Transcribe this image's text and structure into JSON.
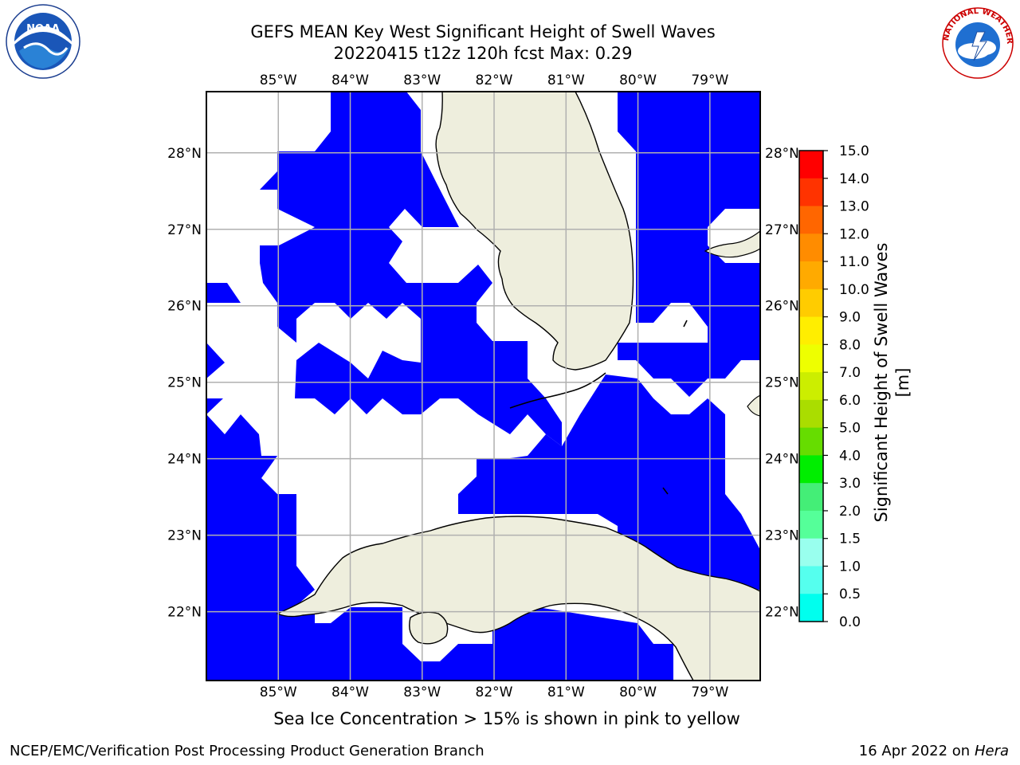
{
  "title": {
    "line1": "GEFS MEAN Key West Significant Height of Swell Waves",
    "line2": "20220415 t12z 120h fcst   Max: 0.29"
  },
  "logos": {
    "left": {
      "icon": "noaa-logo-icon",
      "text": "NOAA"
    },
    "right": {
      "icon": "nws-logo-icon",
      "text": "NATIONAL WEATHER SERVICE"
    }
  },
  "map": {
    "lon_labels": [
      "85°W",
      "84°W",
      "83°W",
      "82°W",
      "81°W",
      "80°W",
      "79°W"
    ],
    "lat_labels": [
      "28°N",
      "27°N",
      "26°N",
      "25°N",
      "24°N",
      "23°N",
      "22°N"
    ],
    "extent": {
      "lon_min": -86,
      "lon_max": -78.3,
      "lat_min": 21.1,
      "lat_max": 28.8
    },
    "water_color": "#0000ff",
    "land_color": "#eeeedd",
    "nodata_color": "#ffffff",
    "grid_color": "#b0b0b0"
  },
  "colorbar": {
    "label": "Significant Height of Swell Waves [m]",
    "ticks": [
      "15.0",
      "14.0",
      "13.0",
      "12.0",
      "11.0",
      "10.0",
      "9.0",
      "8.0",
      "7.0",
      "6.0",
      "5.0",
      "4.0",
      "3.0",
      "2.0",
      "1.5",
      "1.0",
      "0.5",
      "0.0"
    ],
    "colors": [
      "#ff0000",
      "#ff3300",
      "#ff6600",
      "#ff8c00",
      "#ffaa00",
      "#ffcc00",
      "#ffee00",
      "#eeff00",
      "#ccee00",
      "#aadd00",
      "#66dd00",
      "#00ee00",
      "#44ee77",
      "#55ff99",
      "#99ffee",
      "#55ffee",
      "#00ffee",
      "#0077ff",
      "#0000ff"
    ]
  },
  "footnote": "Sea Ice Concentration > 15% is shown in pink to yellow",
  "credit": "NCEP/EMC/Verification Post Processing Product Generation Branch",
  "run_date": "16 Apr 2022 on",
  "host": "Hera"
}
